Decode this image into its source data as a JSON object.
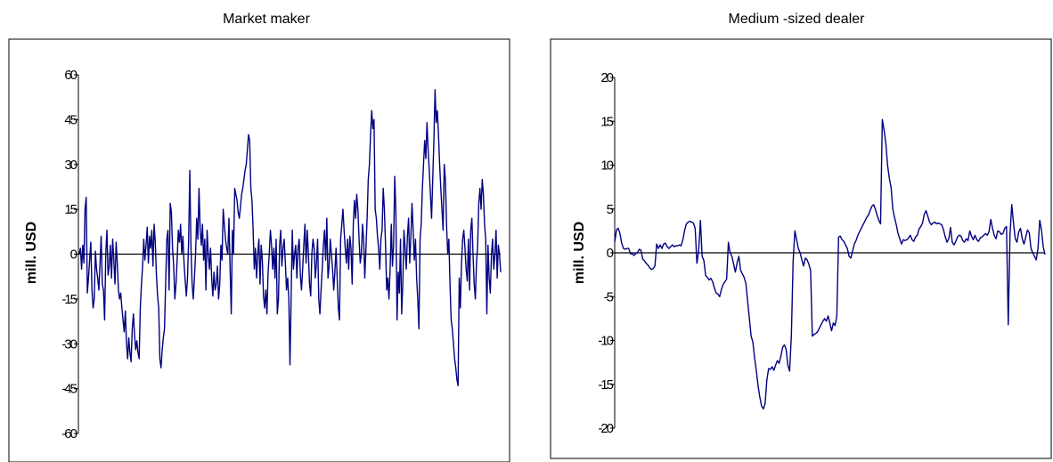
{
  "colors": {
    "series": "#000080",
    "axis": "#000000",
    "frame": "#000000"
  },
  "chart_data": [
    {
      "type": "line",
      "title": "Market maker",
      "ylabel": "mill. USD",
      "xlabel": "",
      "ylim": [
        -60,
        60
      ],
      "yticks": [
        60,
        45,
        30,
        15,
        0,
        -15,
        -30,
        -45,
        -60
      ],
      "ytick_labels": [
        "60",
        "45",
        "30",
        "15",
        "0",
        "-15",
        "-30",
        "-45",
        "-60"
      ],
      "grid": false,
      "series": [
        {
          "values": [
            0,
            2,
            -5,
            3,
            -3,
            15,
            19,
            -13,
            -8,
            -2,
            4,
            -12,
            -18,
            -15,
            1,
            -5,
            -8,
            -12,
            -3,
            6,
            -10,
            -12,
            -22,
            0,
            8,
            -7,
            -4,
            3,
            -8,
            5,
            -2,
            -10,
            4,
            -3,
            -12,
            -15,
            -13,
            -18,
            -22,
            -26,
            -19,
            -30,
            -35,
            -28,
            -33,
            -36,
            -25,
            -20,
            -27,
            -32,
            -29,
            -33,
            -35,
            -18,
            -10,
            -4,
            5,
            -2,
            3,
            9,
            -3,
            6,
            2,
            8,
            -4,
            10,
            4,
            -7,
            -14,
            -18,
            -35,
            -38,
            -32,
            -28,
            -25,
            -10,
            5,
            8,
            -12,
            17,
            14,
            2,
            -4,
            -15,
            -10,
            -2,
            8,
            4,
            10,
            0,
            6,
            -3,
            -9,
            -14,
            -8,
            5,
            28,
            2,
            -10,
            -15,
            -8,
            0,
            12,
            5,
            22,
            8,
            3,
            10,
            -2,
            5,
            -12,
            8,
            0,
            -5,
            2,
            -8,
            -14,
            -6,
            -12,
            -10,
            -4,
            -15,
            -10,
            3,
            -2,
            15,
            10,
            5,
            2,
            0,
            12,
            -5,
            -20,
            8,
            0,
            22,
            20,
            18,
            14,
            12,
            16,
            20,
            22,
            25,
            28,
            30,
            35,
            40,
            38,
            22,
            18,
            8,
            -5,
            2,
            -8,
            0,
            5,
            -10,
            3,
            -2,
            -14,
            -18,
            -12,
            -20,
            -6,
            0,
            8,
            3,
            -5,
            2,
            -8,
            5,
            -20,
            -15,
            3,
            8,
            -4,
            2,
            5,
            -3,
            -12,
            -8,
            -15,
            -37,
            -15,
            8,
            -5,
            0,
            3,
            -8,
            2,
            5,
            -7,
            -12,
            -5,
            3,
            10,
            -3,
            8,
            0,
            -10,
            -14,
            0,
            5,
            2,
            -8,
            -3,
            5,
            -15,
            -20,
            -12,
            -5,
            3,
            8,
            -2,
            12,
            -8,
            -4,
            5,
            0,
            -5,
            -12,
            -6,
            2,
            -8,
            -18,
            -22,
            5,
            10,
            15,
            8,
            2,
            -3,
            5,
            -5,
            6,
            2,
            -10,
            10,
            18,
            12,
            20,
            15,
            5,
            -3,
            0,
            10,
            5,
            -8,
            2,
            12,
            25,
            30,
            40,
            48,
            42,
            45,
            15,
            12,
            6,
            2,
            -5,
            5,
            8,
            22,
            15,
            3,
            -12,
            -8,
            -15,
            -5,
            10,
            -4,
            3,
            26,
            14,
            -22,
            -6,
            -13,
            5,
            -20,
            -10,
            8,
            2,
            -5,
            6,
            12,
            -3,
            6,
            17,
            8,
            -2,
            5,
            -8,
            -15,
            -25,
            5,
            10,
            22,
            30,
            38,
            32,
            44,
            35,
            28,
            20,
            12,
            25,
            38,
            55,
            44,
            48,
            40,
            30,
            22,
            15,
            8,
            30,
            25,
            10,
            0,
            5,
            -10,
            -22,
            -25,
            -30,
            -35,
            -38,
            -42,
            -44,
            -8,
            -18,
            -3,
            5,
            8,
            2,
            -5,
            -9,
            5,
            -12,
            8,
            12,
            0,
            -10,
            -15,
            -3,
            3,
            17,
            22,
            15,
            25,
            20,
            10,
            5,
            -20,
            3,
            -8,
            -13,
            0,
            5,
            -5,
            0,
            8,
            -8,
            3,
            0,
            -6
          ]
        }
      ]
    },
    {
      "type": "line",
      "title": "Medium -sized dealer",
      "ylabel": "mill. USD",
      "xlabel": "",
      "ylim": [
        -20,
        20
      ],
      "yticks": [
        20,
        15,
        10,
        5,
        0,
        -5,
        -10,
        -15,
        -20
      ],
      "ytick_labels": [
        "20",
        "15",
        "10",
        "5",
        "0",
        "-5",
        "-10",
        "-15",
        "-20"
      ],
      "grid": false,
      "series": [
        {
          "values": [
            1.2,
            2.6,
            2.8,
            2.2,
            1.1,
            0.5,
            0.4,
            0.5,
            0.5,
            -0.1,
            -0.1,
            -0.3,
            -0.1,
            0.0,
            0.4,
            0.3,
            -0.7,
            -0.9,
            -1.2,
            -1.4,
            -1.7,
            -1.9,
            -1.8,
            -1.5,
            1.0,
            0.5,
            0.9,
            0.5,
            1.0,
            1.1,
            0.7,
            0.5,
            0.7,
            0.9,
            0.7,
            0.8,
            0.8,
            0.9,
            0.8,
            1.5,
            2.6,
            3.3,
            3.5,
            3.6,
            3.5,
            3.4,
            2.8,
            -1.2,
            0.2,
            3.7,
            -0.4,
            -0.9,
            -2.6,
            -2.8,
            -3.1,
            -2.9,
            -3.3,
            -4.0,
            -4.6,
            -4.7,
            -5.0,
            -4.2,
            -3.6,
            -3.3,
            -3.0,
            1.2,
            0.0,
            -0.4,
            -1.3,
            -2.2,
            -1.1,
            -0.4,
            -2.0,
            -2.4,
            -2.8,
            -3.5,
            -5.5,
            -7.5,
            -9.5,
            -10.2,
            -12.0,
            -13.5,
            -15.2,
            -16.5,
            -17.5,
            -17.8,
            -17.2,
            -14.5,
            -13.2,
            -13.3,
            -13.0,
            -13.4,
            -12.8,
            -12.3,
            -12.6,
            -11.8,
            -10.8,
            -10.5,
            -11.0,
            -12.8,
            -13.5,
            -9.5,
            -1.0,
            2.5,
            1.5,
            0.5,
            0.0,
            -0.8,
            -1.5,
            -0.6,
            -0.8,
            -1.3,
            -2.0,
            -9.5,
            -9.3,
            -9.2,
            -9.0,
            -8.6,
            -8.2,
            -7.8,
            -7.5,
            -7.8,
            -7.2,
            -8.0,
            -8.9,
            -8.0,
            -8.3,
            -7.2,
            1.8,
            1.9,
            1.5,
            1.3,
            0.9,
            0.5,
            -0.4,
            -0.6,
            0.2,
            1.0,
            1.4,
            2.0,
            2.4,
            2.8,
            3.2,
            3.6,
            4.0,
            4.3,
            4.8,
            5.3,
            5.5,
            5.0,
            4.3,
            3.7,
            3.3,
            15.2,
            14.0,
            12.5,
            10.0,
            8.5,
            7.5,
            5.0,
            4.0,
            3.2,
            2.2,
            1.6,
            1.0,
            1.5,
            1.4,
            1.5,
            1.7,
            2.0,
            1.5,
            1.3,
            1.8,
            2.0,
            2.7,
            3.0,
            3.4,
            4.4,
            4.8,
            4.2,
            3.5,
            3.2,
            3.4,
            3.5,
            3.3,
            3.4,
            3.3,
            3.2,
            2.6,
            1.8,
            1.2,
            1.6,
            2.9,
            1.2,
            0.9,
            1.3,
            1.8,
            2.0,
            1.9,
            1.4,
            1.2,
            1.6,
            1.4,
            2.5,
            1.9,
            1.5,
            2.0,
            1.5,
            1.3,
            1.7,
            1.8,
            2.0,
            2.2,
            2.0,
            2.4,
            3.8,
            2.8,
            2.0,
            1.6,
            2.5,
            2.4,
            2.1,
            2.2,
            2.8,
            3.0,
            -8.2,
            2.0,
            5.5,
            3.4,
            1.6,
            1.2,
            2.4,
            2.8,
            1.6,
            1.0,
            1.8,
            2.6,
            2.3,
            0.5,
            0.0,
            -0.4,
            -0.8,
            0.5,
            3.7,
            2.6,
            0.7,
            -0.2
          ]
        }
      ]
    }
  ]
}
